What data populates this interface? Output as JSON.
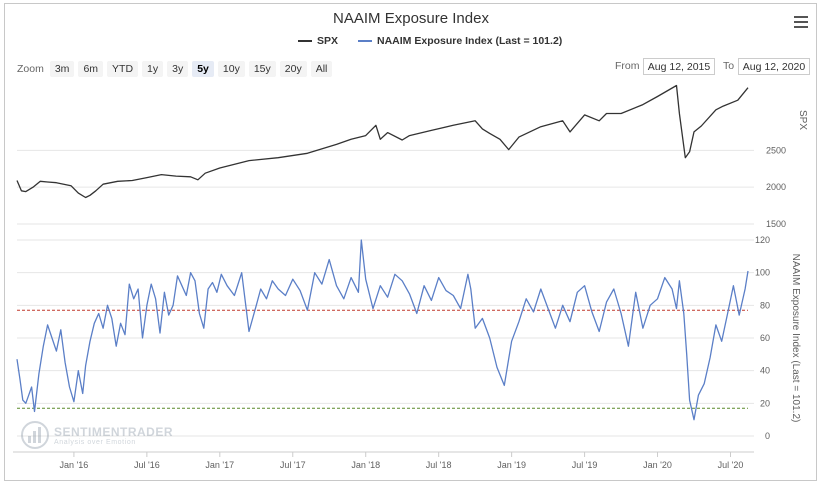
{
  "title": "NAAIM Exposure Index",
  "legend": [
    {
      "name": "SPX",
      "color": "#333333"
    },
    {
      "name": "NAAIM Exposure Index (Last = 101.2)",
      "color": "#5b7fc7"
    }
  ],
  "zoom": {
    "label": "Zoom",
    "buttons": [
      "3m",
      "6m",
      "YTD",
      "1y",
      "3y",
      "5y",
      "10y",
      "15y",
      "20y",
      "All"
    ],
    "active": "5y"
  },
  "range": {
    "from_label": "From",
    "from_value": "Aug 12, 2015",
    "to_label": "To",
    "to_value": "Aug 12, 2020"
  },
  "watermark": {
    "name": "SENTIMENTRADER",
    "tagline": "Analysis over Emotion"
  },
  "chart_data": {
    "type": "line",
    "x_ticks": [
      "Jan '16",
      "Jul '16",
      "Jan '17",
      "Jul '17",
      "Jan '18",
      "Jul '18",
      "Jan '19",
      "Jul '19",
      "Jan '20",
      "Jul '20"
    ],
    "x_tick_years": [
      2016.0,
      2016.5,
      2017.0,
      2017.5,
      2018.0,
      2018.5,
      2019.0,
      2019.5,
      2020.0,
      2020.5
    ],
    "xlim": [
      2015.61,
      2020.62
    ],
    "panels": [
      {
        "name": "SPX",
        "ylabel": "SPX",
        "ylim": [
          1500,
          3400
        ],
        "yticks": [
          1500,
          2000,
          2500
        ],
        "color": "#333333",
        "series": {
          "name": "SPX",
          "x": [
            2015.61,
            2015.64,
            2015.67,
            2015.72,
            2015.77,
            2015.82,
            2015.88,
            2015.93,
            2015.98,
            2016.03,
            2016.08,
            2016.11,
            2016.15,
            2016.2,
            2016.3,
            2016.4,
            2016.5,
            2016.6,
            2016.7,
            2016.8,
            2016.85,
            2016.9,
            2017.0,
            2017.2,
            2017.4,
            2017.6,
            2017.8,
            2017.9,
            2018.0,
            2018.07,
            2018.1,
            2018.15,
            2018.25,
            2018.3,
            2018.45,
            2018.6,
            2018.75,
            2018.8,
            2018.85,
            2018.92,
            2018.98,
            2019.05,
            2019.2,
            2019.35,
            2019.4,
            2019.5,
            2019.6,
            2019.65,
            2019.75,
            2019.9,
            2020.0,
            2020.13,
            2020.15,
            2020.19,
            2020.22,
            2020.25,
            2020.3,
            2020.4,
            2020.45,
            2020.55,
            2020.62
          ],
          "values": [
            2090,
            1950,
            1940,
            2000,
            2080,
            2070,
            2060,
            2040,
            2020,
            1920,
            1860,
            1890,
            1950,
            2040,
            2080,
            2090,
            2130,
            2170,
            2150,
            2140,
            2100,
            2190,
            2260,
            2360,
            2400,
            2460,
            2580,
            2650,
            2700,
            2840,
            2650,
            2740,
            2640,
            2700,
            2770,
            2840,
            2900,
            2790,
            2730,
            2650,
            2510,
            2680,
            2820,
            2900,
            2750,
            2980,
            2900,
            3000,
            3000,
            3120,
            3230,
            3380,
            3000,
            2400,
            2480,
            2750,
            2830,
            3050,
            3100,
            3180,
            3350
          ]
        }
      },
      {
        "name": "NAAIM Exposure Index",
        "ylabel": "NAAIM Exposure Index (Last = 101.2)",
        "ylim": [
          0,
          120
        ],
        "yticks": [
          0,
          20,
          40,
          60,
          80,
          100,
          120
        ],
        "color": "#5b7fc7",
        "reference_lines": [
          {
            "value": 77,
            "color": "#c0392b"
          },
          {
            "value": 17,
            "color": "#5a8a2a"
          }
        ],
        "series": {
          "name": "NAAIM Exposure Index",
          "x": [
            2015.61,
            2015.63,
            2015.65,
            2015.67,
            2015.69,
            2015.71,
            2015.73,
            2015.76,
            2015.79,
            2015.82,
            2015.85,
            2015.88,
            2015.91,
            2015.94,
            2015.97,
            2016.0,
            2016.03,
            2016.06,
            2016.08,
            2016.11,
            2016.14,
            2016.17,
            2016.2,
            2016.23,
            2016.26,
            2016.29,
            2016.32,
            2016.35,
            2016.38,
            2016.41,
            2016.44,
            2016.47,
            2016.5,
            2016.53,
            2016.56,
            2016.59,
            2016.62,
            2016.65,
            2016.68,
            2016.71,
            2016.74,
            2016.77,
            2016.8,
            2016.83,
            2016.86,
            2016.89,
            2016.92,
            2016.95,
            2016.98,
            2017.01,
            2017.05,
            2017.1,
            2017.15,
            2017.2,
            2017.25,
            2017.28,
            2017.32,
            2017.36,
            2017.4,
            2017.45,
            2017.5,
            2017.55,
            2017.6,
            2017.65,
            2017.7,
            2017.75,
            2017.8,
            2017.85,
            2017.9,
            2017.95,
            2017.97,
            2018.0,
            2018.05,
            2018.1,
            2018.15,
            2018.2,
            2018.25,
            2018.3,
            2018.35,
            2018.4,
            2018.45,
            2018.5,
            2018.55,
            2018.6,
            2018.65,
            2018.7,
            2018.72,
            2018.75,
            2018.8,
            2018.85,
            2018.9,
            2018.95,
            2019.0,
            2019.05,
            2019.1,
            2019.15,
            2019.2,
            2019.25,
            2019.3,
            2019.35,
            2019.4,
            2019.45,
            2019.5,
            2019.55,
            2019.6,
            2019.65,
            2019.7,
            2019.75,
            2019.8,
            2019.85,
            2019.9,
            2019.95,
            2020.0,
            2020.05,
            2020.1,
            2020.13,
            2020.15,
            2020.18,
            2020.2,
            2020.22,
            2020.25,
            2020.28,
            2020.32,
            2020.36,
            2020.4,
            2020.44,
            2020.48,
            2020.52,
            2020.56,
            2020.6,
            2020.62
          ],
          "values": [
            47,
            35,
            22,
            20,
            25,
            30,
            15,
            38,
            55,
            68,
            60,
            52,
            65,
            45,
            30,
            21,
            40,
            26,
            43,
            58,
            69,
            75,
            66,
            80,
            72,
            55,
            69,
            62,
            93,
            84,
            90,
            60,
            80,
            93,
            84,
            63,
            88,
            74,
            80,
            98,
            92,
            86,
            100,
            95,
            75,
            66,
            90,
            94,
            88,
            99,
            92,
            86,
            100,
            64,
            80,
            90,
            84,
            95,
            90,
            86,
            96,
            89,
            77,
            100,
            93,
            108,
            92,
            84,
            97,
            88,
            120,
            96,
            78,
            92,
            85,
            99,
            95,
            87,
            75,
            92,
            83,
            97,
            89,
            86,
            78,
            99,
            90,
            66,
            72,
            60,
            42,
            31,
            58,
            70,
            84,
            76,
            90,
            78,
            66,
            80,
            70,
            88,
            92,
            76,
            64,
            82,
            90,
            75,
            55,
            88,
            66,
            80,
            84,
            97,
            90,
            78,
            95,
            75,
            50,
            22,
            10,
            25,
            32,
            48,
            68,
            58,
            75,
            92,
            74,
            90,
            101
          ]
        }
      }
    ]
  }
}
